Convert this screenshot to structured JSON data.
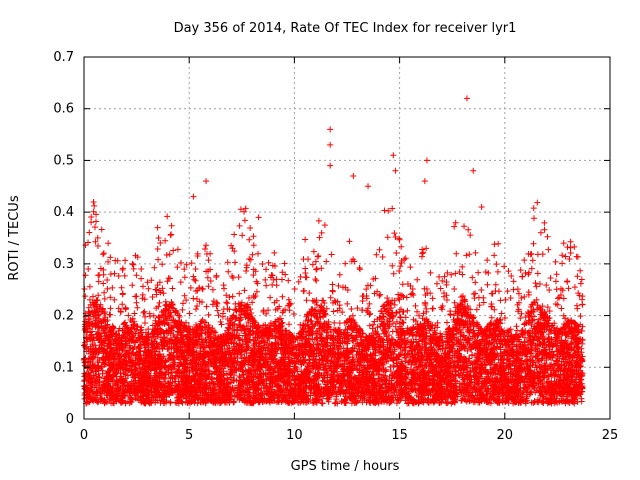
{
  "chart_data": {
    "type": "scatter",
    "title": "Day 356 of 2014, Rate Of TEC Index for receiver lyr1",
    "xlabel": "GPS time / hours",
    "ylabel": "ROTI / TECUs",
    "xlim": [
      0,
      25
    ],
    "ylim": [
      0,
      0.7
    ],
    "xticks": [
      "0",
      "5",
      "10",
      "15",
      "20",
      "25"
    ],
    "yticks": [
      "0",
      "0.1",
      "0.2",
      "0.3",
      "0.4",
      "0.5",
      "0.6",
      "0.7"
    ],
    "grid": true,
    "marker": "+",
    "color": "#ff0000",
    "series": [
      {
        "name": "ROTI",
        "x_range": [
          0,
          23.7
        ],
        "typical_band": [
          0.03,
          0.2
        ],
        "outliers": [
          {
            "x": 0.2,
            "y": 0.29
          },
          {
            "x": 2.3,
            "y": 0.3
          },
          {
            "x": 3.5,
            "y": 0.37
          },
          {
            "x": 5.2,
            "y": 0.43
          },
          {
            "x": 5.8,
            "y": 0.46
          },
          {
            "x": 8.3,
            "y": 0.39
          },
          {
            "x": 11.7,
            "y": 0.56
          },
          {
            "x": 11.7,
            "y": 0.53
          },
          {
            "x": 11.7,
            "y": 0.49
          },
          {
            "x": 12.8,
            "y": 0.47
          },
          {
            "x": 13.5,
            "y": 0.45
          },
          {
            "x": 14.7,
            "y": 0.51
          },
          {
            "x": 14.8,
            "y": 0.48
          },
          {
            "x": 16.3,
            "y": 0.5
          },
          {
            "x": 16.2,
            "y": 0.46
          },
          {
            "x": 18.2,
            "y": 0.62
          },
          {
            "x": 18.5,
            "y": 0.48
          },
          {
            "x": 18.9,
            "y": 0.41
          },
          {
            "x": 22.8,
            "y": 0.34
          }
        ]
      }
    ]
  }
}
